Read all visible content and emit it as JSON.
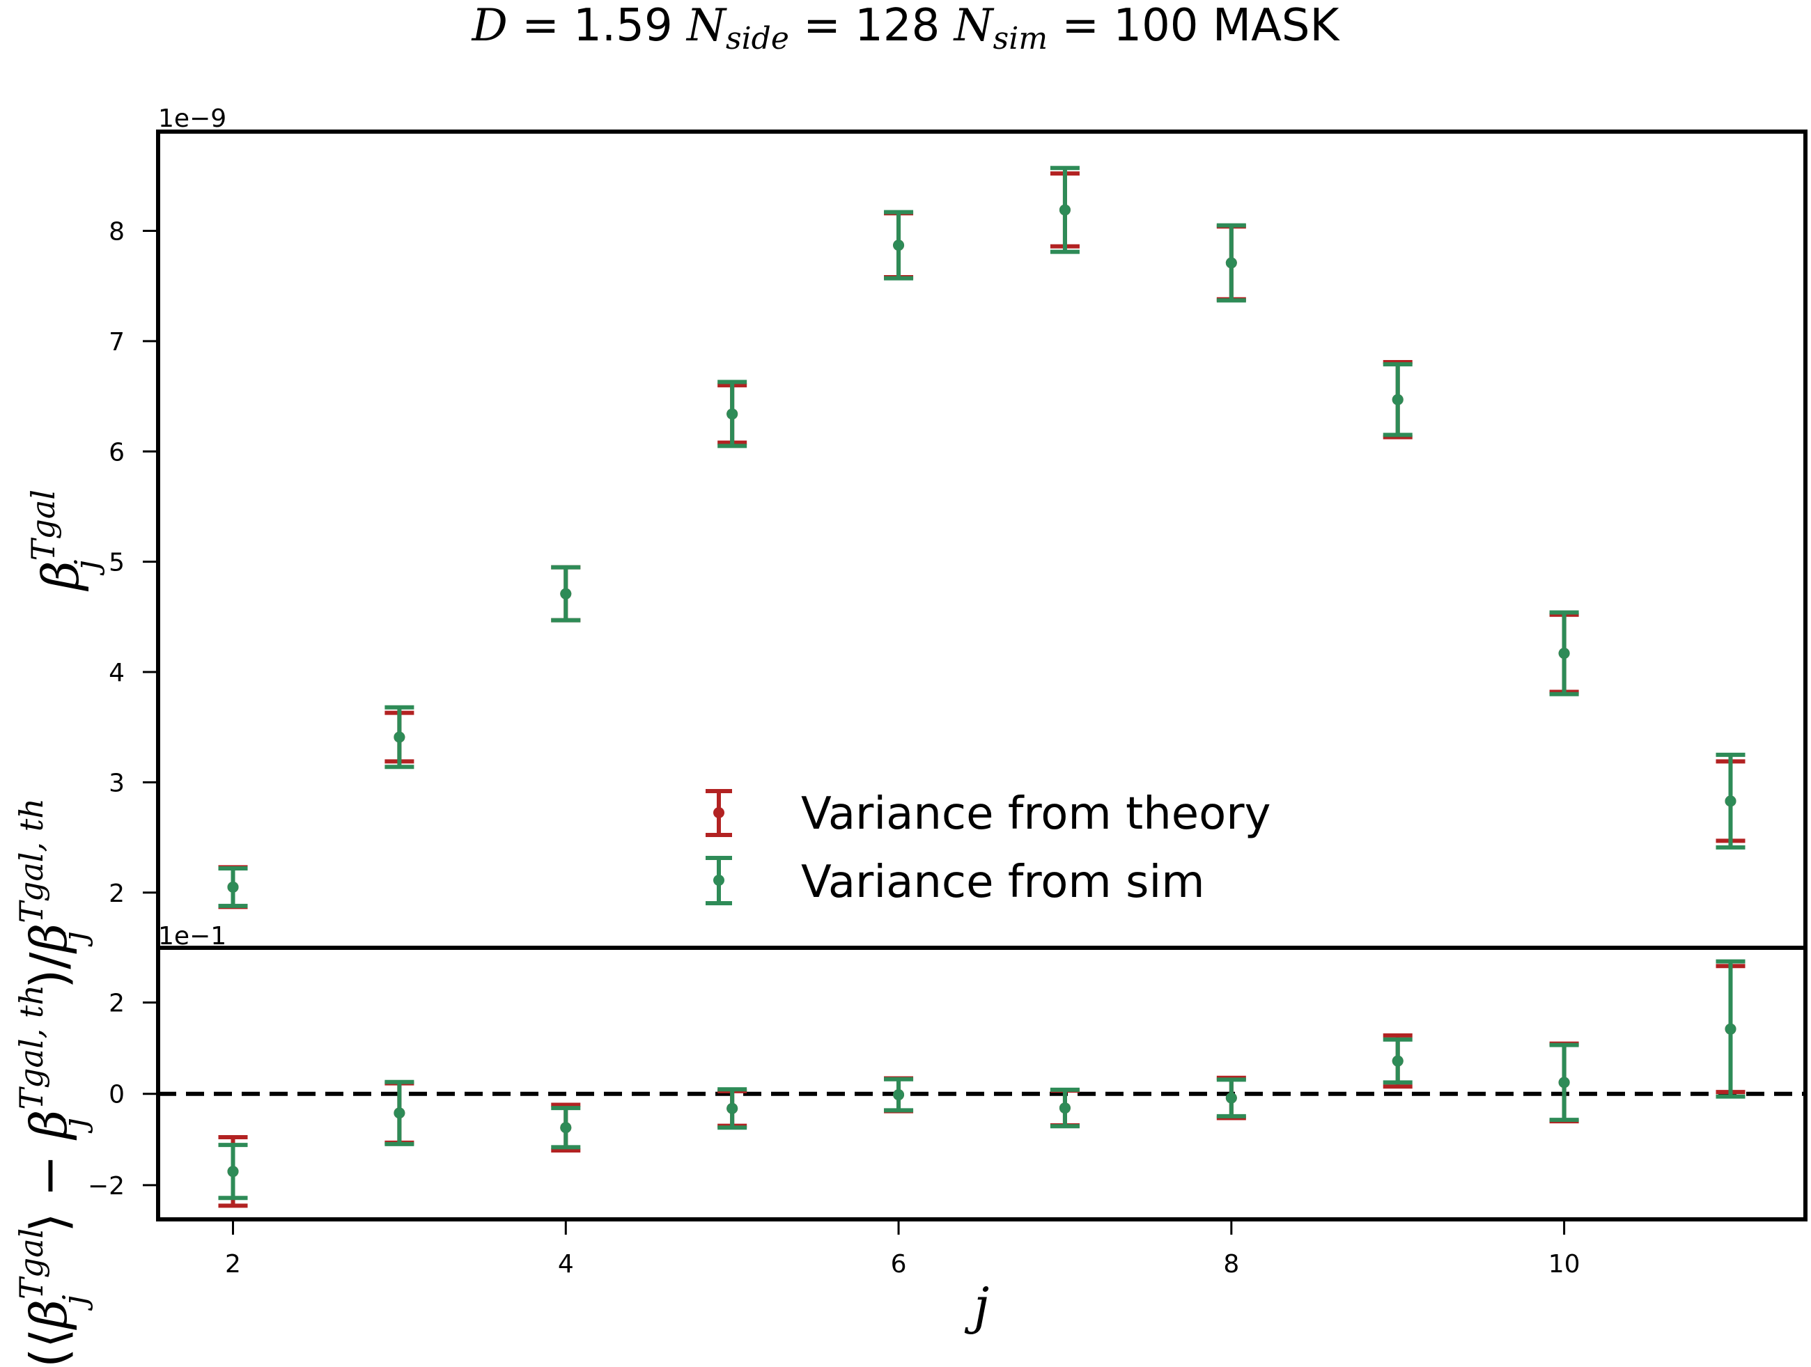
{
  "figure": {
    "title_parts": {
      "d_sym": "D",
      "d_eq": " = 1.59 ",
      "nside_sym": "N",
      "nside_sub": "side",
      "nside_eq": " = 128 ",
      "nsim_sym": "N",
      "nsim_sub": "sim",
      "nsim_eq": " = 100 MASK"
    },
    "xlabel": "j",
    "colors": {
      "theory": "#b22222",
      "sim": "#2e8b57",
      "zero_line": "#000000"
    }
  },
  "chart_data": [
    {
      "type": "errorbar",
      "panel": "top",
      "ylabel_parts": {
        "base": "β",
        "sup": "Tgal",
        "sub": "j"
      },
      "y_offset_label": "1e−9",
      "xlim": [
        1.55,
        11.45
      ],
      "ylim": [
        1.5,
        8.9
      ],
      "x_ticks": [
        2,
        4,
        6,
        8,
        10
      ],
      "y_ticks": [
        2,
        3,
        4,
        5,
        6,
        7,
        8
      ],
      "legend": {
        "position": "lower-center",
        "entries": [
          "Variance from theory",
          "Variance from sim"
        ]
      },
      "series": [
        {
          "name": "Variance from theory",
          "color": "#b22222",
          "x": [
            2,
            3,
            4,
            5,
            6,
            7,
            8,
            9,
            10,
            11
          ],
          "y": [
            2.05,
            3.41,
            4.71,
            6.34,
            7.87,
            8.19,
            7.71,
            6.47,
            4.17,
            2.83
          ],
          "yerr": [
            0.18,
            0.22,
            0.24,
            0.26,
            0.29,
            0.33,
            0.33,
            0.34,
            0.35,
            0.36
          ]
        },
        {
          "name": "Variance from sim",
          "color": "#2e8b57",
          "x": [
            2,
            3,
            4,
            5,
            6,
            7,
            8,
            9,
            10,
            11
          ],
          "y": [
            2.05,
            3.41,
            4.71,
            6.34,
            7.87,
            8.19,
            7.71,
            6.47,
            4.17,
            2.83
          ],
          "yerr": [
            0.17,
            0.27,
            0.24,
            0.29,
            0.3,
            0.38,
            0.34,
            0.32,
            0.37,
            0.42
          ]
        }
      ]
    },
    {
      "type": "errorbar",
      "panel": "bottom",
      "ylabel_parts": {
        "open": "(⟨",
        "b1": "β",
        "b1_sup": "Tgal",
        "b1_sub": "j",
        "mid": "⟩ − ",
        "b2": "β",
        "b2_sup": "Tgal, th",
        "b2_sub": "j",
        "slash": ")/",
        "b3": "β",
        "b3_sup": "Tgal, th",
        "b3_sub": "j"
      },
      "y_offset_label": "1e−1",
      "xlim": [
        1.55,
        11.45
      ],
      "ylim": [
        -2.75,
        3.2
      ],
      "x_ticks": [
        2,
        4,
        6,
        8,
        10
      ],
      "y_ticks": [
        -2,
        0,
        2
      ],
      "reference_line": 0,
      "series": [
        {
          "name": "Variance from theory",
          "color": "#b22222",
          "x": [
            2,
            3,
            4,
            5,
            6,
            7,
            8,
            9,
            10,
            11
          ],
          "y": [
            -1.7,
            -0.42,
            -0.74,
            -0.32,
            -0.02,
            -0.31,
            -0.09,
            0.72,
            0.25,
            1.42
          ],
          "yerr": [
            0.75,
            0.65,
            0.5,
            0.38,
            0.36,
            0.38,
            0.44,
            0.56,
            0.85,
            1.38
          ]
        },
        {
          "name": "Variance from sim",
          "color": "#2e8b57",
          "x": [
            2,
            3,
            4,
            5,
            6,
            7,
            8,
            9,
            10,
            11
          ],
          "y": [
            -1.7,
            -0.42,
            -0.74,
            -0.32,
            -0.02,
            -0.31,
            -0.09,
            0.72,
            0.25,
            1.42
          ],
          "yerr": [
            0.58,
            0.68,
            0.43,
            0.42,
            0.34,
            0.4,
            0.4,
            0.47,
            0.82,
            1.48
          ]
        }
      ]
    }
  ]
}
